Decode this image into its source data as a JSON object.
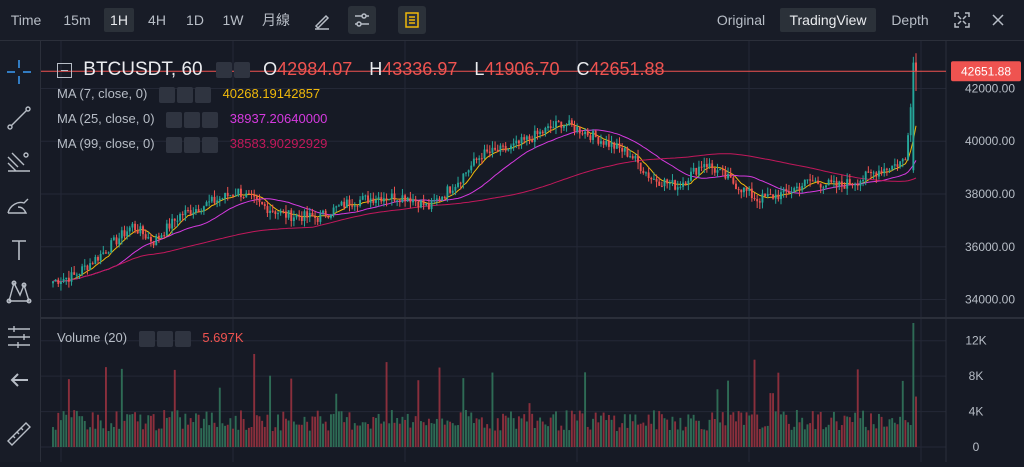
{
  "toolbar": {
    "intervals": [
      "Time",
      "15m",
      "1H",
      "4H",
      "1D",
      "1W",
      "月線"
    ],
    "active_interval": "1H",
    "views": [
      "Original",
      "TradingView",
      "Depth"
    ],
    "active_view": "TradingView"
  },
  "legend": {
    "symbol": "BTCUSDT, 60",
    "open_label": "O",
    "open": "42984.07",
    "high_label": "H",
    "high": "43336.97",
    "low_label": "L",
    "low": "41906.70",
    "close_label": "C",
    "close": "42651.88",
    "ma7_label": "MA (7, close, 0)",
    "ma7_value": "40268.19142857",
    "ma25_label": "MA (25, close, 0)",
    "ma25_value": "38937.20640000",
    "ma99_label": "MA (99, close, 0)",
    "ma99_value": "38583.90292929",
    "volume_label": "Volume (20)",
    "volume_value": "5.697K",
    "price_tag": "42651.88"
  },
  "colors": {
    "up": "#26a69a",
    "down": "#ef5350",
    "ma7": "#f0b90b",
    "ma25": "#d63ae0",
    "ma99": "#c2185b"
  },
  "chart_data": {
    "type": "candlestick",
    "price_axis": {
      "ticks": [
        "42000.00",
        "40000.00",
        "38000.00",
        "36000.00",
        "34000.00"
      ],
      "ylim": [
        33300,
        43800
      ]
    },
    "volume_axis": {
      "ticks": [
        "12K",
        "8K",
        "4K",
        "0"
      ],
      "ylim": [
        0,
        14000
      ]
    },
    "last_close": 42651.88,
    "ma7_last": 40268.19,
    "ma25_last": 38937.21,
    "ma99_last": 38583.9
  }
}
